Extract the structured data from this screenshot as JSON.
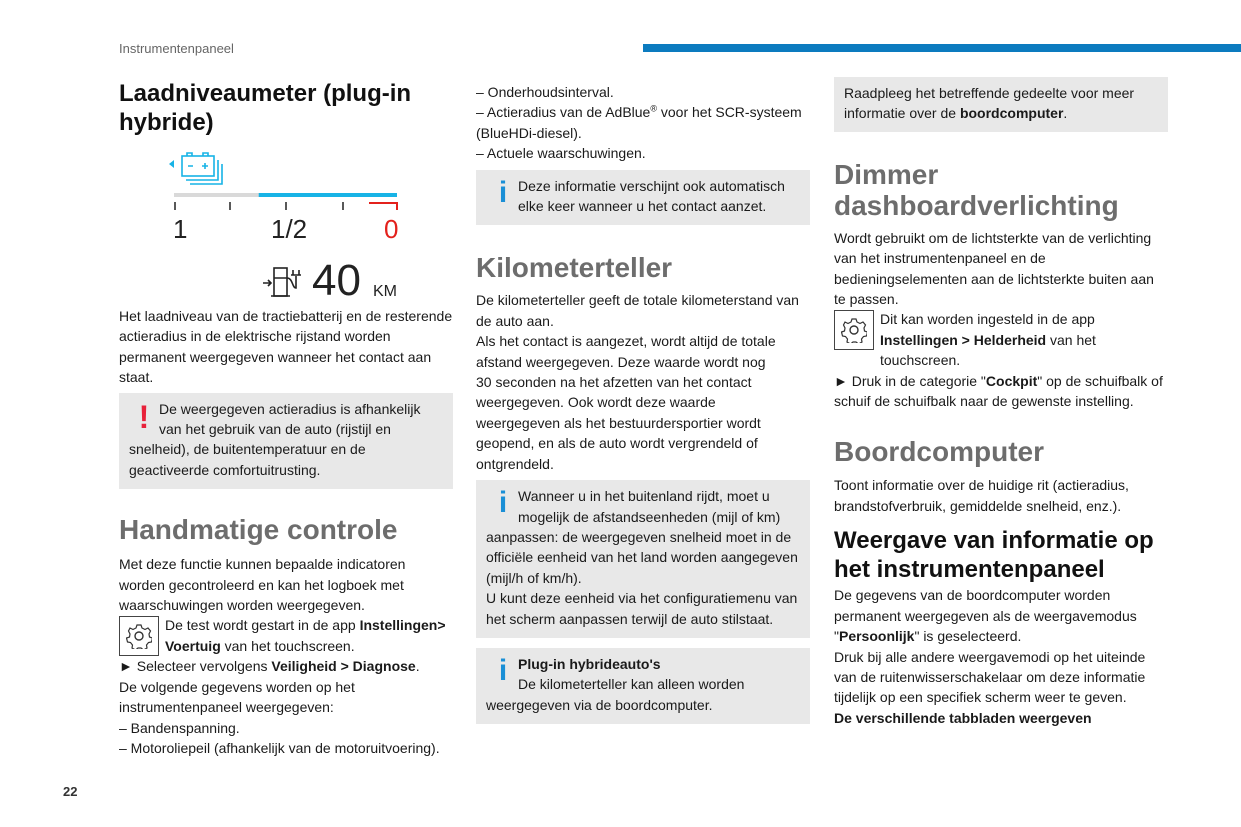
{
  "header": {
    "section": "Instrumentenpaneel",
    "page_number": "22",
    "accent": "#0c7bbf"
  },
  "col1": {
    "title": "Laadniveaumeter (plug-in hybride)",
    "gauge": {
      "labels": [
        "1",
        "1/2",
        "0"
      ],
      "range_value": "40",
      "range_unit": "KM",
      "charge_level_percent": 62,
      "blue": "#17b3e6",
      "red": "#e3211c"
    },
    "intro": "Het laadniveau van de tractiebatterij en de resterende actieradius in de elektrische rijstand worden permanent weergegeven wanneer het contact aan staat.",
    "warning": "De weergegeven actieradius is afhankelijk van het gebruik van de auto (rijstijl en snelheid), de buitentemperatuur en de geactiveerde comfortuitrusting.",
    "heading": "Handmatige controle",
    "para1": "Met deze functie kunnen bepaalde indicatoren worden gecontroleerd en kan het logboek met waarschuwingen worden weergegeven.",
    "gear_text": [
      "De test wordt gestart in de app ",
      "Instellingen> Voertuig",
      " van het touchscreen."
    ],
    "step": [
      "► Selecteer vervolgens ",
      "Veiligheid > Diagnose",
      "."
    ],
    "para2": "De volgende gegevens worden op het instrumentenpaneel weergegeven:",
    "list": [
      "–  Bandenspanning.",
      "–  Motoroliepeil (afhankelijk van de motoruitvoering)."
    ]
  },
  "col2": {
    "list": [
      "–  Onderhoudsinterval.",
      "–  Actieradius van de AdBlue",
      "®",
      " voor het SCR-systeem (BlueHDi-diesel).",
      "–  Actuele waarschuwingen."
    ],
    "info1": "Deze informatie verschijnt ook automatisch elke keer wanneer u het contact aanzet.",
    "heading": "Kilometerteller",
    "para": "De kilometerteller geeft de totale kilometerstand van de auto aan.",
    "para2": "Als het contact is aangezet, wordt altijd de totale afstand weergegeven. Deze waarde wordt nog 30 seconden na het afzetten van het contact weergegeven. Ook wordt deze waarde weergegeven als het bestuurdersportier wordt geopend, en als de auto wordt vergrendeld of ontgrendeld.",
    "info2a": "Wanneer u in het buitenland rijdt, moet u mogelijk de afstandseenheden (mijl of km) aanpassen: de weergegeven snelheid moet in de officiële eenheid van het land worden aangegeven (mijl/h of km/h).",
    "info2b": "U kunt deze eenheid via het configuratiemenu van het scherm aanpassen terwijl de auto stilstaat.",
    "info3_title": "Plug-in hybrideauto's",
    "info3": "De kilometerteller kan alleen worden weergegeven via de boordcomputer."
  },
  "col3": {
    "note": [
      "Raadpleeg het betreffende gedeelte voor meer informatie over de ",
      "boordcomputer",
      "."
    ],
    "heading1": "Dimmer dashboardverlichting",
    "para1": "Wordt gebruikt om de lichtsterkte van de verlichting van het instrumentenpaneel en de bedieningselementen aan de lichtsterkte buiten aan te passen.",
    "gear_text": [
      "Dit kan worden ingesteld in de app ",
      "Instellingen > Helderheid",
      " van het touchscreen."
    ],
    "step": [
      "► Druk in de categorie \"",
      "Cockpit",
      "\" op de schuifbalk of schuif de schuifbalk naar de gewenste instelling."
    ],
    "heading2": "Boordcomputer",
    "para2": "Toont informatie over de huidige rit (actieradius, brandstofverbruik, gemiddelde snelheid, enz.).",
    "heading3": "Weergave van informatie op het instrumentenpaneel",
    "para3": [
      "De gegevens van de boordcomputer worden permanent weergegeven als de weergavemodus \"",
      "Persoonlijk",
      "\" is geselecteerd."
    ],
    "para4": "Druk bij alle andere weergavemodi op het uiteinde van de ruitenwisserschakelaar om deze informatie tijdelijk op een specifiek scherm weer te geven.",
    "para5": "De verschillende tabbladen weergeven"
  }
}
